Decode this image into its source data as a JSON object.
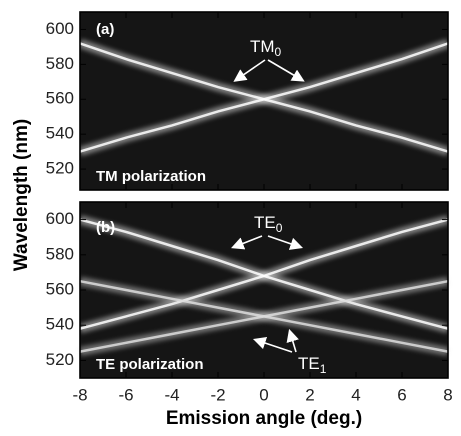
{
  "chart_data": [
    {
      "type": "line",
      "panel_label": "(a)",
      "annotation": "TM polarization",
      "mode_label": {
        "text": "TM",
        "sub": "0"
      },
      "x": [
        -8,
        -6,
        -4,
        -2,
        0,
        2,
        4,
        6,
        8
      ],
      "series": [
        {
          "color": "#ffffff",
          "values": [
            592,
            583,
            575,
            567,
            560,
            553,
            545,
            538,
            530
          ]
        },
        {
          "color": "#ffffff",
          "values": [
            530,
            538,
            545,
            553,
            560,
            567,
            575,
            583,
            592
          ]
        }
      ],
      "xlim": [
        -8,
        8
      ],
      "ylim": [
        508,
        610
      ],
      "yticks": [
        520,
        540,
        560,
        580,
        600
      ]
    },
    {
      "type": "line",
      "panel_label": "(b)",
      "annotation": "TE polarization",
      "mode_label": {
        "text": "TE",
        "sub": "0"
      },
      "mode_label_2": {
        "text": "TE",
        "sub": "1"
      },
      "x": [
        -8,
        -6,
        -4,
        -2,
        0,
        2,
        4,
        6,
        8
      ],
      "series": [
        {
          "color": "#ffffff",
          "values": [
            600,
            593,
            585,
            577,
            568,
            560,
            552,
            545,
            538
          ]
        },
        {
          "color": "#ffffff",
          "values": [
            538,
            545,
            552,
            560,
            568,
            577,
            585,
            593,
            600
          ]
        },
        {
          "color": "#dddddd",
          "values": [
            565,
            560,
            555,
            550,
            545,
            540,
            535,
            530,
            525
          ]
        },
        {
          "color": "#dddddd",
          "values": [
            525,
            530,
            535,
            540,
            545,
            550,
            555,
            560,
            565
          ]
        }
      ],
      "xlim": [
        -8,
        8
      ],
      "ylim": [
        510,
        610
      ],
      "yticks": [
        520,
        540,
        560,
        580,
        600
      ],
      "xticks": [
        -8,
        -6,
        -4,
        -2,
        0,
        2,
        4,
        6,
        8
      ],
      "xlabel": "Emission angle (deg.)",
      "ylabel": "Wavelength (nm)"
    }
  ]
}
